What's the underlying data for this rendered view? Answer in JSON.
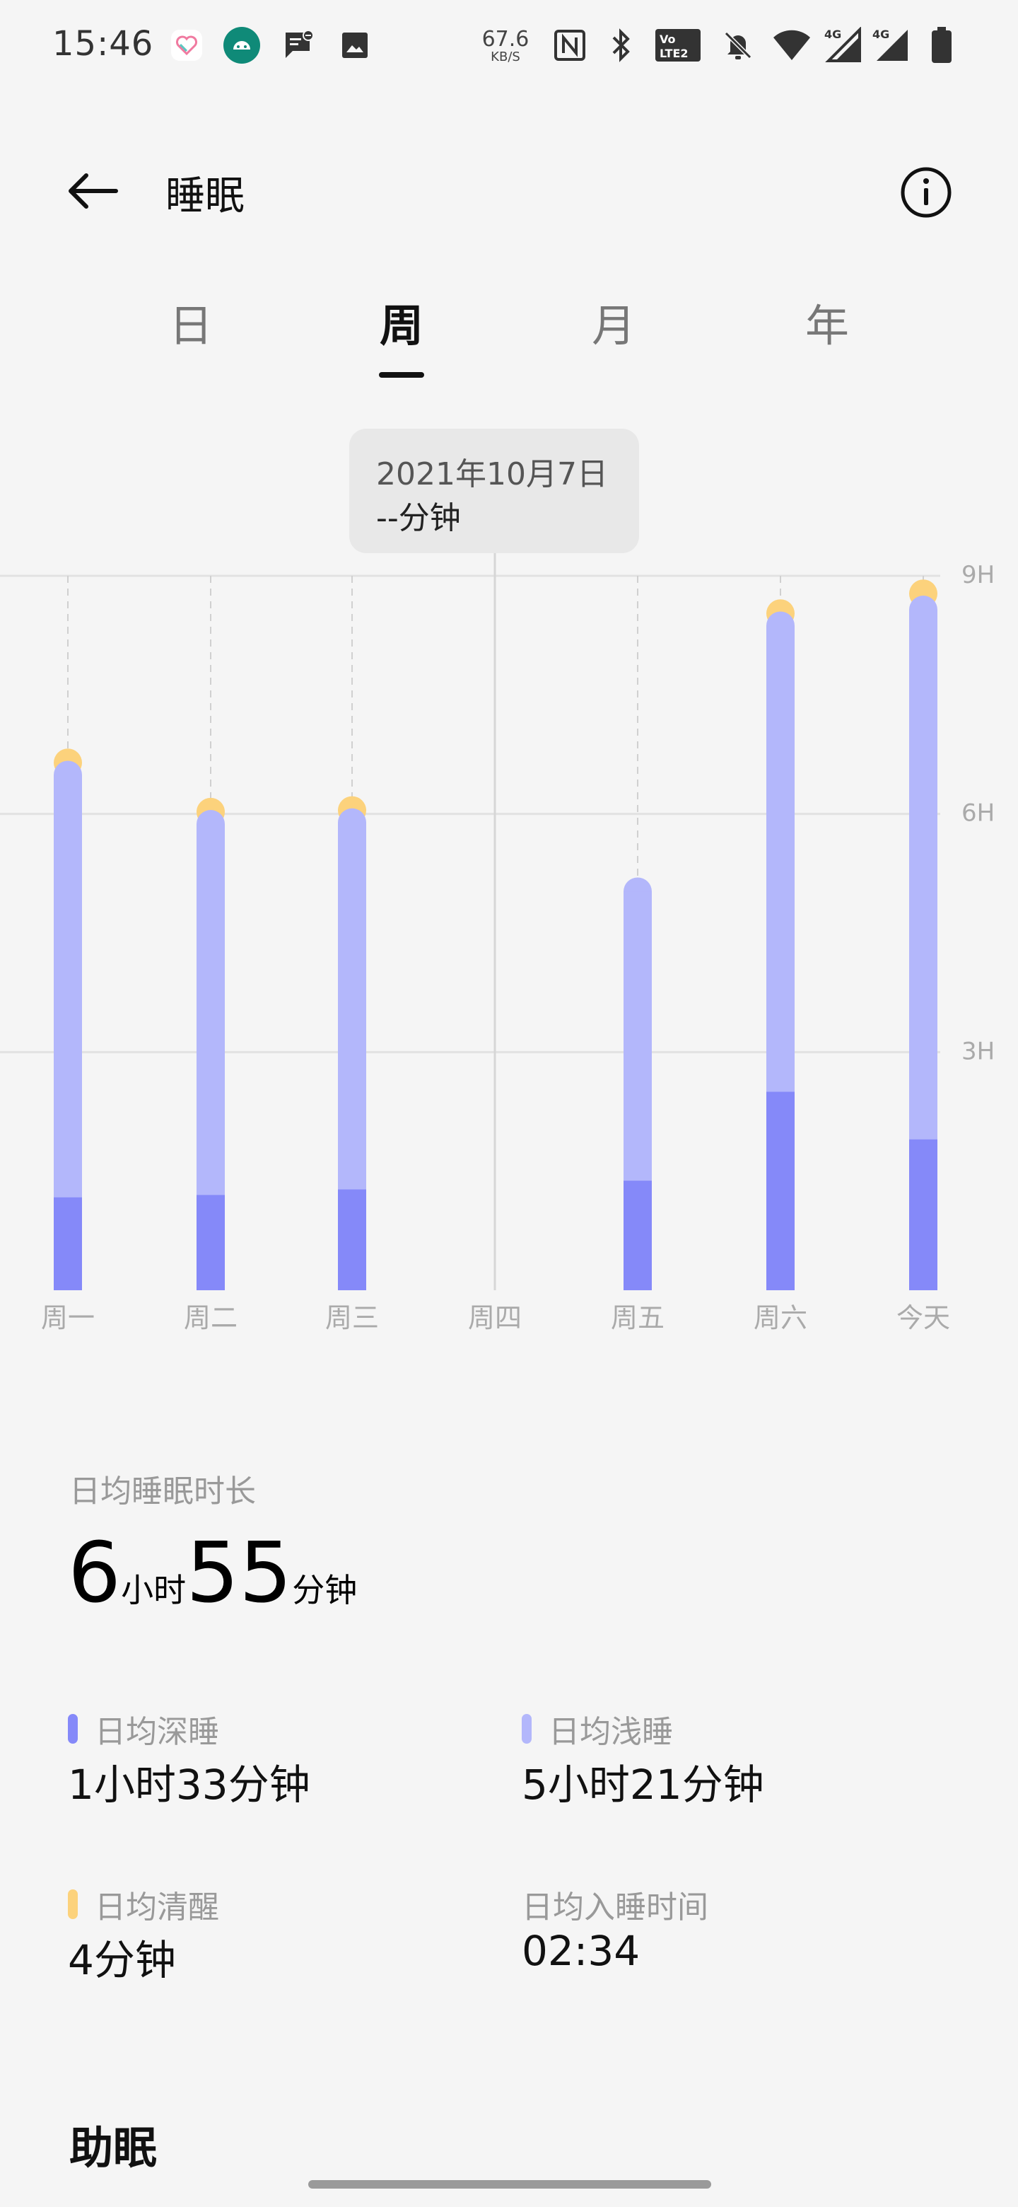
{
  "status_bar": {
    "time": "15:46",
    "net_speed_value": "67.6",
    "net_speed_unit": "KB/S",
    "icons": [
      "health-app-icon",
      "android-icon",
      "message-icon",
      "gallery-icon",
      "nfc-icon",
      "bluetooth-icon",
      "volte-icon",
      "mute-icon",
      "wifi-icon",
      "signal-4g-icon",
      "signal-4g-icon",
      "battery-icon"
    ]
  },
  "header": {
    "title": "睡眠"
  },
  "tabs": [
    {
      "label": "日",
      "active": false
    },
    {
      "label": "周",
      "active": true
    },
    {
      "label": "月",
      "active": false
    },
    {
      "label": "年",
      "active": false
    }
  ],
  "tooltip": {
    "date": "2021年10月7日",
    "value": "--分钟"
  },
  "colors": {
    "deep": "#8589f9",
    "light": "#b3b7fb",
    "awake": "#fcd27c",
    "grid": "#e2e2e2"
  },
  "chart_data": {
    "type": "bar",
    "stacked": true,
    "categories": [
      "周一",
      "周二",
      "周三",
      "周四",
      "周五",
      "周六",
      "今天"
    ],
    "series": [
      {
        "name": "深睡",
        "values": [
          1.17,
          1.2,
          1.27,
          0,
          1.38,
          2.5,
          1.9
        ]
      },
      {
        "name": "浅睡",
        "values": [
          5.5,
          4.85,
          4.8,
          0,
          3.82,
          6.05,
          6.85
        ]
      },
      {
        "name": "清醒",
        "values": [
          0.1,
          0.1,
          0.1,
          0,
          0,
          0.1,
          0.15
        ]
      }
    ],
    "y_ticks": [
      "3H",
      "6H",
      "9H"
    ],
    "y_tick_values": [
      3,
      6,
      9
    ],
    "ylim": [
      0,
      9
    ],
    "highlighted_category": "周四",
    "grid": true
  },
  "summary": {
    "avg_label": "日均睡眠时长",
    "hours": "6",
    "hours_unit": "小时",
    "minutes": "55",
    "minutes_unit": "分钟"
  },
  "stats": {
    "deep": {
      "label": "日均深睡",
      "value": "1小时33分钟"
    },
    "light": {
      "label": "日均浅睡",
      "value": "5小时21分钟"
    },
    "awake": {
      "label": "日均清醒",
      "value": "4分钟"
    },
    "bedtime": {
      "label": "日均入睡时间",
      "value": "02:34"
    }
  },
  "sleep_aid": {
    "title": "助眠"
  }
}
